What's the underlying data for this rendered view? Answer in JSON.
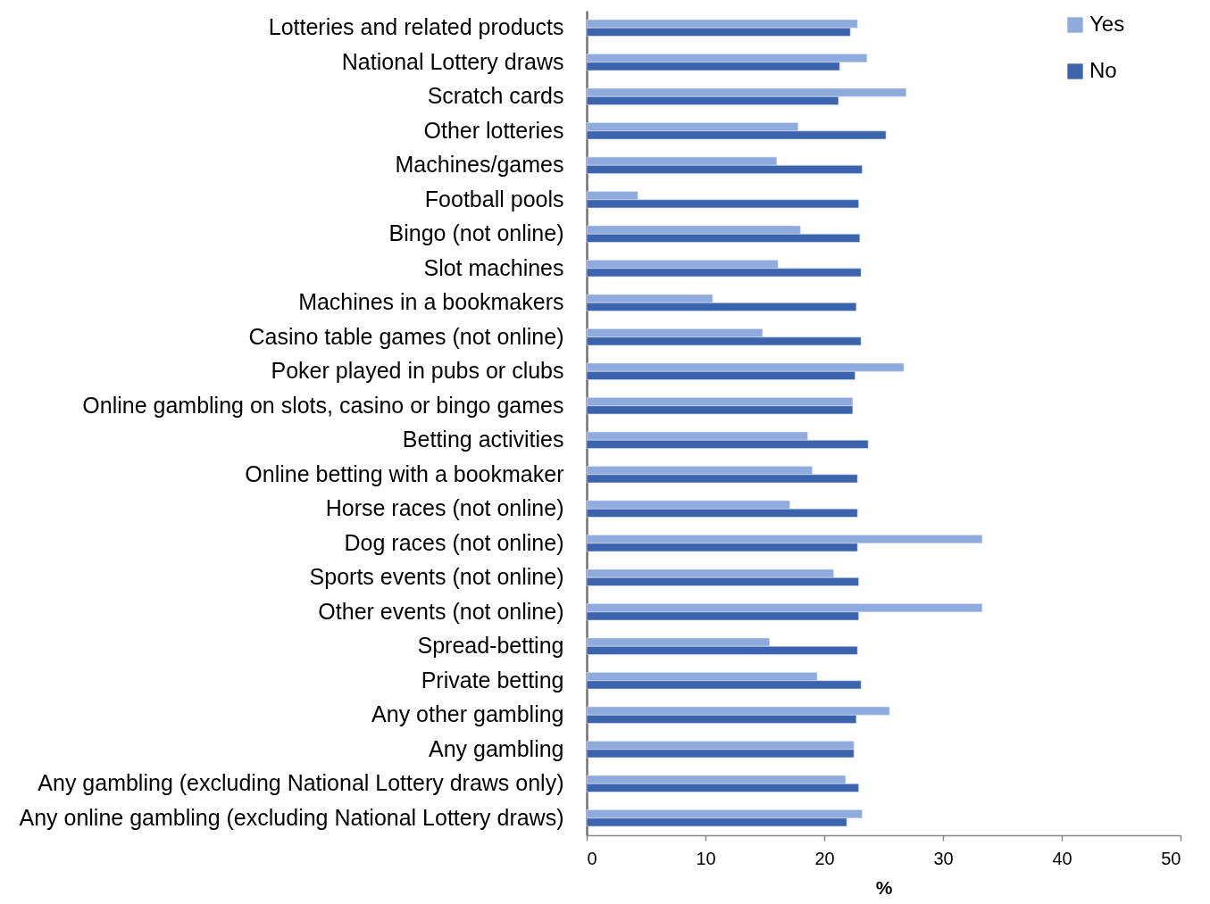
{
  "chart_data": {
    "type": "bar",
    "orientation": "horizontal",
    "categories": [
      "Lotteries and related products",
      "National Lottery draws",
      "Scratch cards",
      "Other lotteries",
      "Machines/games",
      "Football pools",
      "Bingo (not online)",
      "Slot machines",
      "Machines in a bookmakers",
      "Casino table games (not online)",
      "Poker played in pubs or clubs",
      "Online gambling on slots, casino or bingo games",
      "Betting activities",
      "Online betting with a bookmaker",
      "Horse races (not online)",
      "Dog races (not online)",
      "Sports events (not online)",
      "Other events (not online)",
      "Spread-betting",
      "Private betting",
      "Any other gambling",
      "Any gambling",
      "Any gambling (excluding National Lottery draws only)",
      "Any online gambling (excluding National Lottery draws)"
    ],
    "series": [
      {
        "name": "Yes",
        "color": "#8faadc",
        "values": [
          22.8,
          23.6,
          26.9,
          17.8,
          16.0,
          4.3,
          18.0,
          16.1,
          10.6,
          14.8,
          26.7,
          22.4,
          18.6,
          19.0,
          17.1,
          33.3,
          20.8,
          33.3,
          15.4,
          19.4,
          25.5,
          22.5,
          21.8,
          23.2
        ]
      },
      {
        "name": "No",
        "color": "#3c64ad",
        "values": [
          22.2,
          21.3,
          21.2,
          25.2,
          23.2,
          22.9,
          23.0,
          23.1,
          22.7,
          23.1,
          22.6,
          22.4,
          23.7,
          22.8,
          22.8,
          22.8,
          22.9,
          22.9,
          22.8,
          23.1,
          22.7,
          22.5,
          22.9,
          21.9
        ]
      }
    ],
    "xlabel": "%",
    "xlim": [
      0,
      50
    ],
    "xticks": [
      0,
      10,
      20,
      30,
      40,
      50
    ],
    "grid": false,
    "legend": "top right"
  }
}
